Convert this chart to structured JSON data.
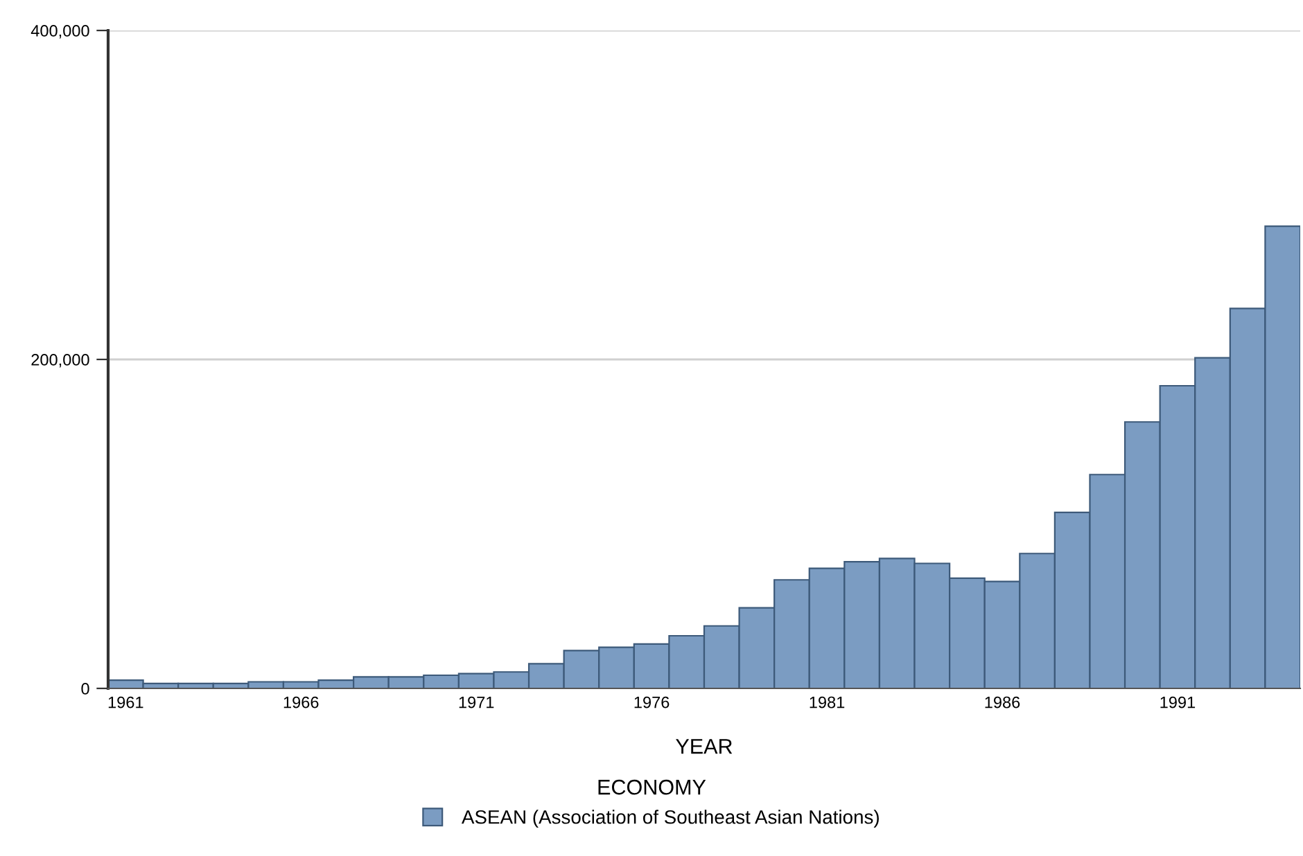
{
  "chart_data": {
    "type": "bar",
    "xlabel": "YEAR",
    "legend_title": "ECONOMY",
    "categories": [
      "1961",
      null,
      null,
      null,
      null,
      "1966",
      null,
      null,
      null,
      null,
      "1971",
      null,
      null,
      null,
      null,
      "1976",
      null,
      null,
      null,
      null,
      "1981",
      null,
      null,
      null,
      null,
      "1986",
      null,
      null,
      null,
      null,
      "1991",
      null,
      null,
      null
    ],
    "series": [
      {
        "name": "ASEAN (Association of Southeast Asian Nations)",
        "color": "#7b9cc2",
        "values": [
          5000,
          3000,
          3000,
          3000,
          4000,
          4000,
          5000,
          7000,
          7000,
          8000,
          9000,
          10000,
          15000,
          23000,
          25000,
          27000,
          32000,
          38000,
          49000,
          66000,
          73000,
          77000,
          79000,
          76000,
          67000,
          65000,
          82000,
          107000,
          130000,
          162000,
          184000,
          201000,
          231000,
          281000
        ]
      }
    ],
    "ylim": [
      0,
      400000
    ],
    "yticks": [
      {
        "value": 0,
        "label": "0"
      },
      {
        "value": 200000,
        "label": "200,000"
      },
      {
        "value": 400000,
        "label": "400,000"
      }
    ],
    "grid": "y",
    "legend": "bottom"
  }
}
